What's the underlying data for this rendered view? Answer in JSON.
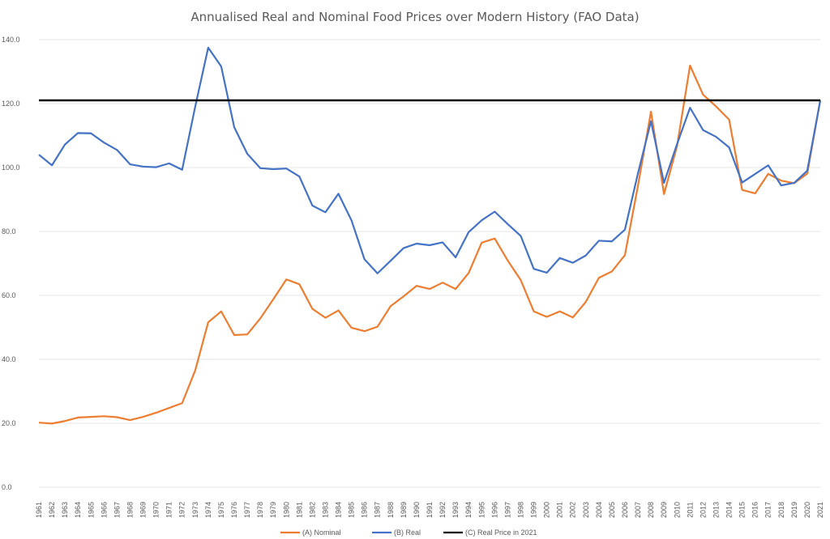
{
  "chart_data": {
    "type": "line",
    "title": "Annualised Real and Nominal Food Prices over Modern History (FAO Data)",
    "xlabel": "",
    "ylabel": "",
    "ylim": [
      0,
      140
    ],
    "yticks": [
      "0.0",
      "20.0",
      "40.0",
      "60.0",
      "80.0",
      "100.0",
      "120.0",
      "140.0"
    ],
    "grid": true,
    "legend_position": "bottom",
    "x": [
      "1961",
      "1962",
      "1963",
      "1964",
      "1965",
      "1966",
      "1967",
      "1968",
      "1969",
      "1970",
      "1971",
      "1972",
      "1973",
      "1974",
      "1975",
      "1976",
      "1977",
      "1978",
      "1979",
      "1980",
      "1981",
      "1982",
      "1983",
      "1984",
      "1985",
      "1986",
      "1987",
      "1988",
      "1989",
      "1990",
      "1991",
      "1992",
      "1993",
      "1994",
      "1995",
      "1996",
      "1997",
      "1998",
      "1999",
      "2000",
      "2001",
      "2002",
      "2003",
      "2004",
      "2005",
      "2006",
      "2007",
      "2008",
      "2009",
      "2010",
      "2011",
      "2012",
      "2013",
      "2014",
      "2015",
      "2016",
      "2017",
      "2018",
      "2019",
      "2020",
      "2021"
    ],
    "series": [
      {
        "name": "(A) Nominal",
        "color": "#ed7d31",
        "values": [
          20.2,
          19.9,
          20.7,
          21.8,
          22.0,
          22.2,
          21.9,
          21.0,
          22.0,
          23.3,
          24.8,
          26.3,
          36.5,
          51.6,
          55.0,
          47.6,
          47.8,
          52.8,
          58.8,
          65.0,
          63.5,
          55.8,
          53.0,
          55.3,
          49.9,
          48.8,
          50.2,
          56.6,
          59.7,
          63.0,
          62.0,
          64.0,
          62.0,
          67.0,
          76.5,
          77.8,
          70.9,
          64.8,
          55.0,
          53.3,
          55.0,
          53.1,
          58.0,
          65.5,
          67.5,
          72.6,
          94.3,
          117.5,
          91.7,
          106.7,
          131.9,
          122.8,
          119.1,
          115.0,
          93.0,
          91.9,
          98.0,
          95.9,
          95.1,
          98.1,
          121.0
        ]
      },
      {
        "name": "(B) Real",
        "color": "#4472c4",
        "values": [
          104.0,
          100.7,
          107.2,
          110.8,
          110.7,
          107.8,
          105.5,
          101.0,
          100.3,
          100.1,
          101.3,
          99.3,
          119.0,
          137.5,
          131.6,
          112.6,
          104.3,
          99.8,
          99.5,
          99.7,
          97.2,
          88.1,
          86.0,
          91.8,
          83.5,
          71.3,
          66.9,
          70.8,
          74.8,
          76.2,
          75.7,
          76.6,
          71.9,
          79.8,
          83.5,
          86.2,
          82.3,
          78.6,
          68.3,
          67.1,
          71.7,
          70.2,
          72.5,
          77.1,
          76.9,
          80.6,
          98.2,
          114.5,
          95.2,
          107.3,
          118.7,
          111.7,
          109.6,
          106.3,
          95.3,
          98.0,
          100.7,
          94.4,
          95.2,
          99.0,
          121.0
        ]
      },
      {
        "name": "(C) Real Price in 2021",
        "color": "#000000",
        "values": [
          121.0,
          121.0,
          121.0,
          121.0,
          121.0,
          121.0,
          121.0,
          121.0,
          121.0,
          121.0,
          121.0,
          121.0,
          121.0,
          121.0,
          121.0,
          121.0,
          121.0,
          121.0,
          121.0,
          121.0,
          121.0,
          121.0,
          121.0,
          121.0,
          121.0,
          121.0,
          121.0,
          121.0,
          121.0,
          121.0,
          121.0,
          121.0,
          121.0,
          121.0,
          121.0,
          121.0,
          121.0,
          121.0,
          121.0,
          121.0,
          121.0,
          121.0,
          121.0,
          121.0,
          121.0,
          121.0,
          121.0,
          121.0,
          121.0,
          121.0,
          121.0,
          121.0,
          121.0,
          121.0,
          121.0,
          121.0,
          121.0,
          121.0,
          121.0,
          121.0,
          121.0
        ]
      }
    ]
  }
}
